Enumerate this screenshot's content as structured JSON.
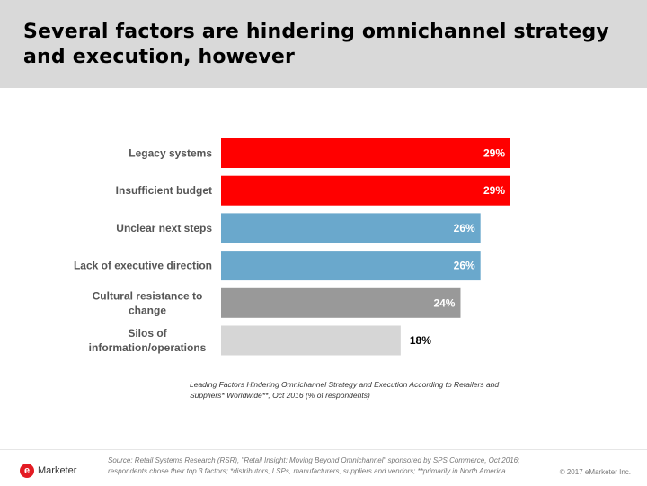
{
  "slide": {
    "title": "Several factors are hindering omnichannel strategy and execution, however"
  },
  "chart_data": {
    "type": "bar",
    "orientation": "horizontal",
    "categories": [
      [
        "Legacy systems"
      ],
      [
        "Insufficient budget"
      ],
      [
        "Unclear next steps"
      ],
      [
        "Lack of executive direction"
      ],
      [
        "Cultural resistance to",
        "change"
      ],
      [
        "Silos of",
        "information/operations"
      ]
    ],
    "values": [
      29,
      29,
      26,
      26,
      24,
      18
    ],
    "value_labels": [
      "29%",
      "29%",
      "26%",
      "26%",
      "24%",
      "18%"
    ],
    "bar_colors": [
      "#ff0000",
      "#ff0000",
      "#6aa8cc",
      "#6aa8cc",
      "#999999",
      "#d6d6d6"
    ],
    "label_colors": [
      "#ffffff",
      "#ffffff",
      "#ffffff",
      "#ffffff",
      "#ffffff",
      "#000000"
    ],
    "xlim": [
      0,
      29
    ],
    "unit": "% of respondents",
    "caption": "Leading Factors Hindering Omnichannel Strategy and Execution According to Retailers and Suppliers* Worldwide**, Oct 2016 (% of respondents)"
  },
  "footer": {
    "logo_mark": "e",
    "logo_text": "Marketer",
    "source": "Source: Retail Systems Research (RSR), \"Retail Insight: Moving Beyond Omnichannel\" sponsored by SPS Commerce, Oct 2016; respondents chose their top 3 factors; *distributors, LSPs, manufacturers, suppliers and vendors; **primarily in North America",
    "copyright": "© 2017 eMarketer Inc."
  }
}
